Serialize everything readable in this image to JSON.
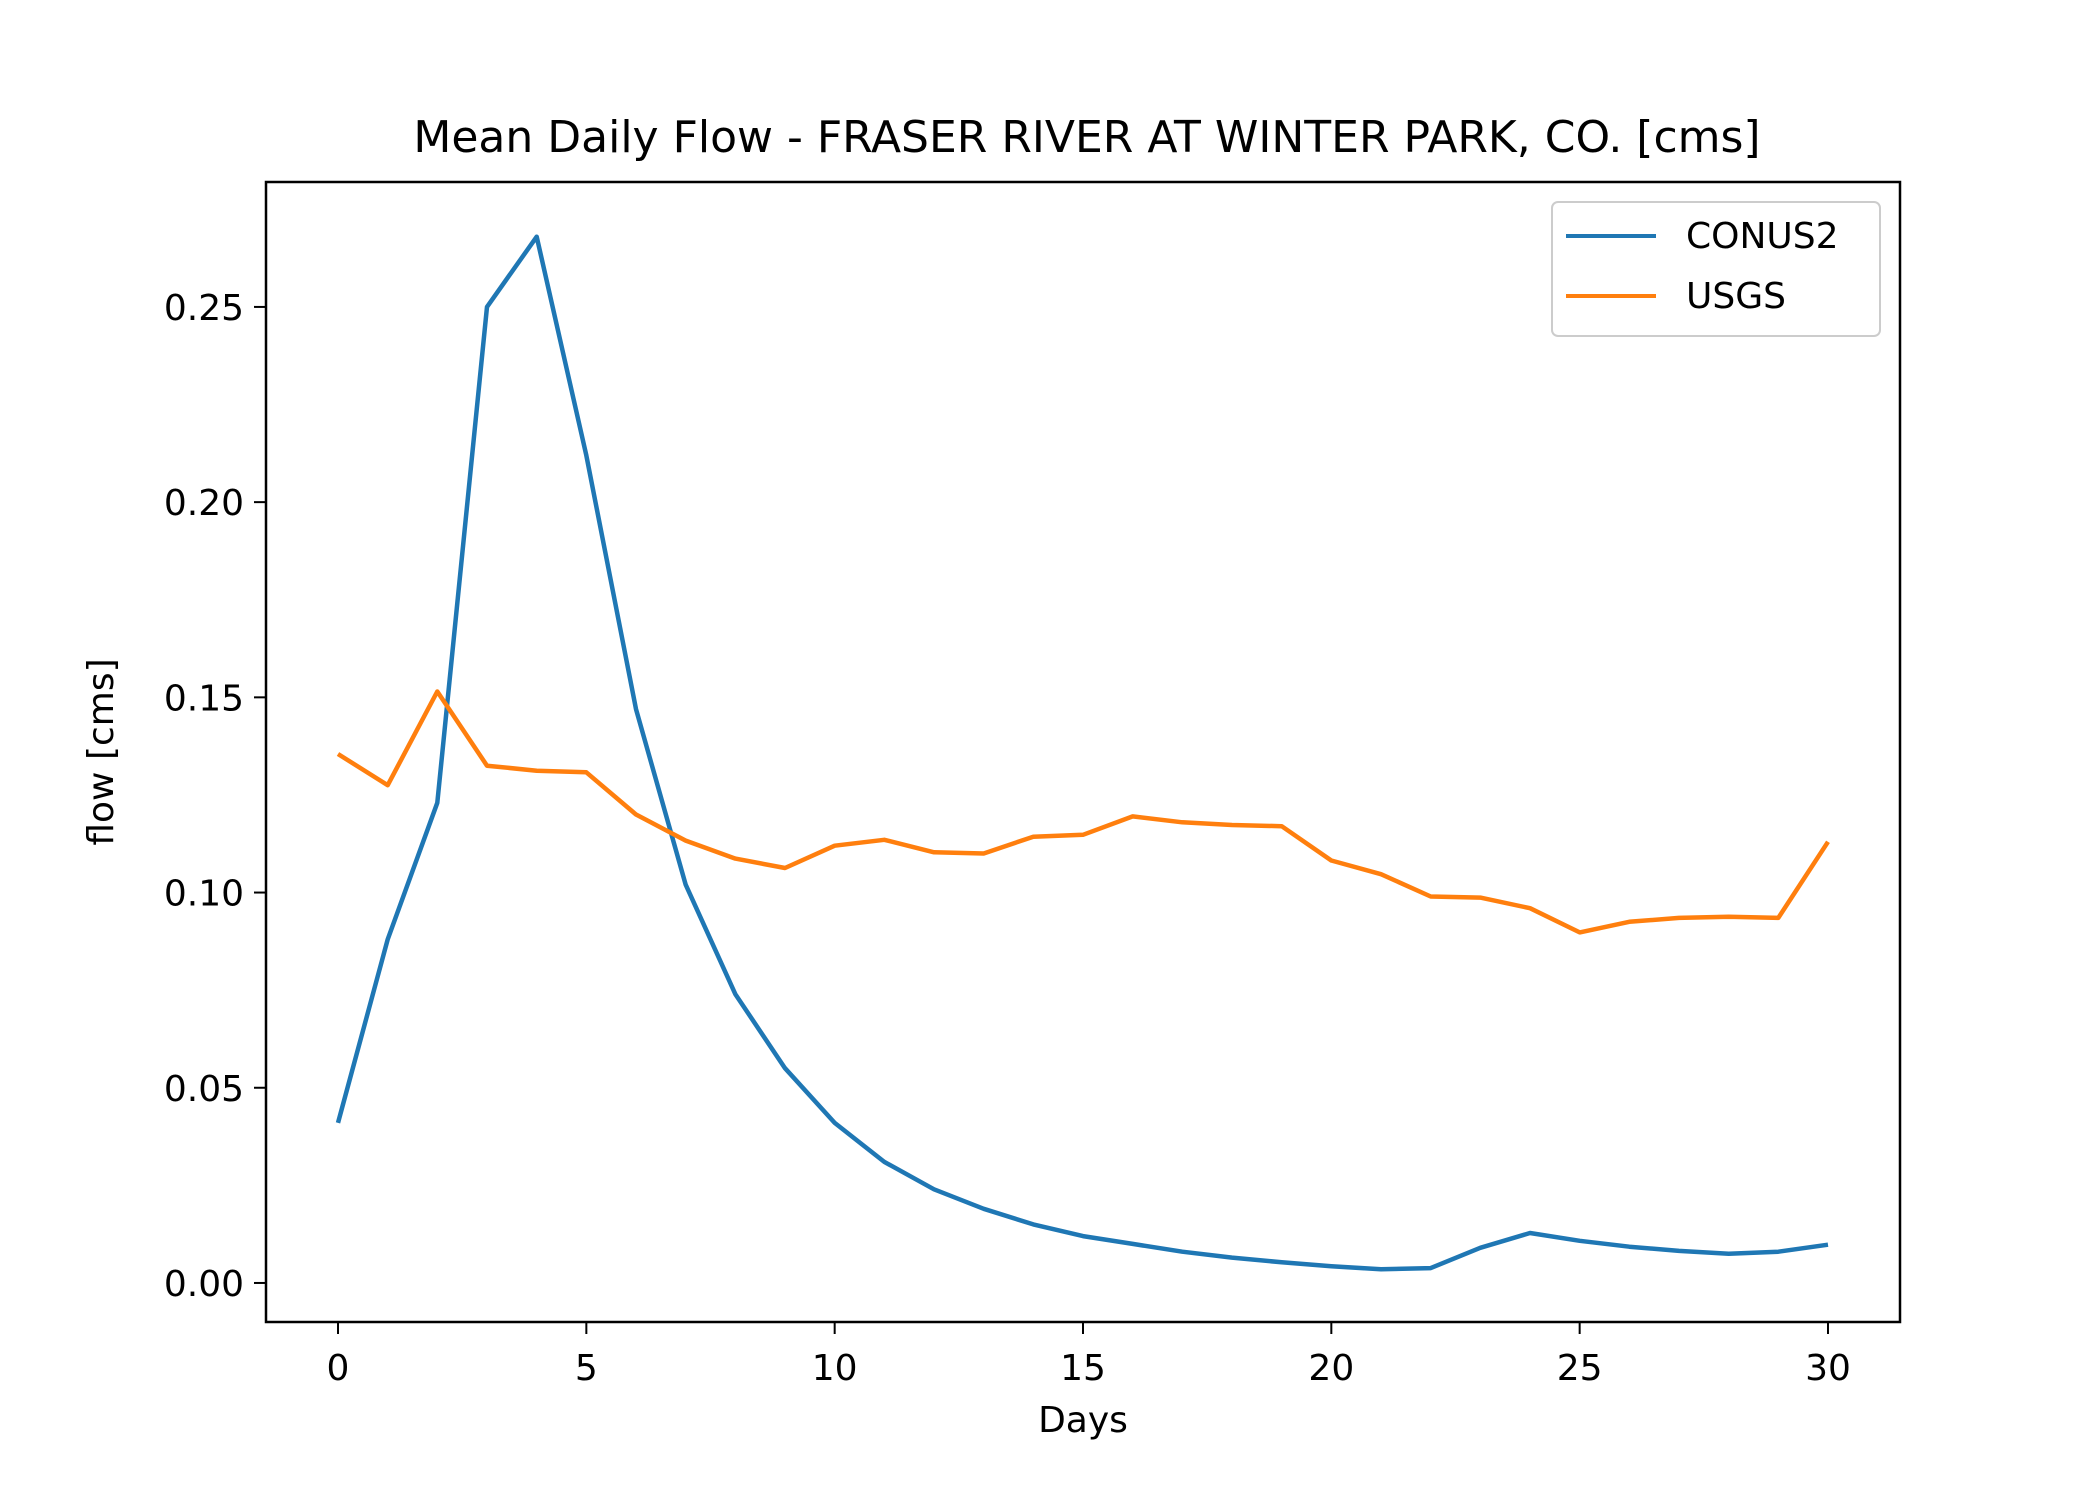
{
  "chart_data": {
    "type": "line",
    "title": "Mean Daily Flow - FRASER RIVER AT WINTER PARK, CO. [cms]",
    "xlabel": "Days",
    "ylabel": "flow [cms]",
    "xlim": [
      -1.45,
      31.45
    ],
    "ylim": [
      -0.01,
      0.282
    ],
    "xticks": [
      0,
      5,
      10,
      15,
      20,
      25,
      30
    ],
    "xtick_labels": [
      "0",
      "5",
      "10",
      "15",
      "20",
      "25",
      "30"
    ],
    "yticks": [
      0.0,
      0.05,
      0.1,
      0.15,
      0.2,
      0.25
    ],
    "ytick_labels": [
      "0.00",
      "0.05",
      "0.10",
      "0.15",
      "0.20",
      "0.25"
    ],
    "grid": false,
    "legend_position": "top-right",
    "x": [
      0,
      1,
      2,
      3,
      4,
      5,
      6,
      7,
      8,
      9,
      10,
      11,
      12,
      13,
      14,
      15,
      16,
      17,
      18,
      19,
      20,
      21,
      22,
      23,
      24,
      25,
      26,
      27,
      28,
      29,
      30
    ],
    "series": [
      {
        "name": "CONUS2",
        "color": "#1f77b4",
        "values": [
          0.041,
          0.088,
          0.123,
          0.25,
          0.268,
          0.212,
          0.147,
          0.102,
          0.074,
          0.055,
          0.041,
          0.031,
          0.024,
          0.019,
          0.015,
          0.012,
          0.01,
          0.008,
          0.0065,
          0.0053,
          0.0043,
          0.0035,
          0.0038,
          0.009,
          0.0128,
          0.0108,
          0.0093,
          0.0082,
          0.0075,
          0.008,
          0.0098
        ]
      },
      {
        "name": "USGS",
        "color": "#ff7f0e",
        "values": [
          0.1355,
          0.1275,
          0.1515,
          0.1325,
          0.1312,
          0.1308,
          0.12,
          0.1133,
          0.1087,
          0.1063,
          0.112,
          0.1135,
          0.1103,
          0.11,
          0.1143,
          0.1148,
          0.1195,
          0.118,
          0.1173,
          0.117,
          0.1082,
          0.1047,
          0.099,
          0.0987,
          0.096,
          0.0898,
          0.0925,
          0.0935,
          0.0938,
          0.0935,
          0.113
        ]
      }
    ]
  }
}
